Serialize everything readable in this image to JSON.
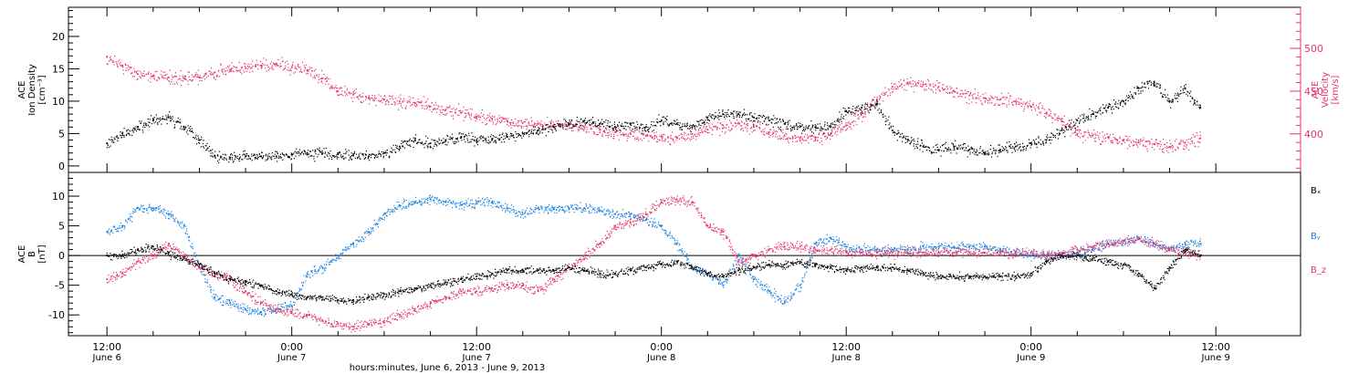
{
  "chart_data": [
    {
      "type": "scatter",
      "panel": "top",
      "ylabel_left": [
        "ACE",
        "Ion Density",
        "[cm⁻³]"
      ],
      "ylabel_right": [
        "ACE",
        "Velocity",
        "[km/s]"
      ],
      "ylim_left": [
        -1,
        24.5
      ],
      "ylim_right": [
        355,
        548
      ],
      "left_ticks": [
        0,
        5,
        10,
        15,
        20
      ],
      "right_ticks": [
        400,
        450,
        500
      ],
      "series": [
        {
          "axis": "left",
          "color": "#000000",
          "x": [
            0,
            1,
            2,
            3,
            4,
            5,
            6,
            7,
            8,
            9,
            10,
            11,
            12,
            13,
            14,
            15,
            16,
            17,
            18,
            19,
            20,
            21,
            22,
            23,
            24,
            25,
            26,
            27,
            28,
            29,
            30,
            31,
            32,
            33,
            34,
            35,
            36,
            37,
            38,
            39,
            40,
            41,
            42,
            43,
            44,
            45,
            46,
            47,
            48,
            49,
            50,
            51,
            52,
            53,
            54,
            55,
            56,
            57,
            58,
            59,
            60,
            61,
            62,
            63,
            64,
            65,
            66,
            67,
            68,
            69,
            70,
            71
          ],
          "y": [
            3.5,
            5,
            6,
            7,
            7.5,
            6,
            4,
            1.5,
            1.3,
            1.5,
            1.5,
            1.5,
            1.8,
            2,
            2,
            1.8,
            1.6,
            1.5,
            2,
            3,
            4,
            3.5,
            4,
            4.5,
            4,
            4,
            4.5,
            5,
            5.5,
            6,
            6.5,
            7,
            6.5,
            6,
            6.5,
            6,
            7,
            6.5,
            6,
            7.5,
            8,
            8,
            7.5,
            7,
            6.5,
            6,
            6,
            6,
            8.5,
            9,
            9.5,
            5.5,
            4,
            3,
            2.5,
            3,
            2.5,
            2,
            2.5,
            3,
            3.5,
            4,
            5.5,
            7,
            8,
            9,
            10,
            12,
            13,
            10,
            12,
            9
          ]
        },
        {
          "axis": "right",
          "color": "#e83268",
          "x": [
            0,
            1,
            2,
            3,
            4,
            5,
            6,
            7,
            8,
            9,
            10,
            11,
            12,
            13,
            14,
            15,
            16,
            17,
            18,
            19,
            20,
            21,
            22,
            23,
            24,
            25,
            26,
            27,
            28,
            29,
            30,
            31,
            32,
            33,
            34,
            35,
            36,
            37,
            38,
            39,
            40,
            41,
            42,
            43,
            44,
            45,
            46,
            47,
            48,
            49,
            50,
            51,
            52,
            53,
            54,
            55,
            56,
            57,
            58,
            59,
            60,
            61,
            62,
            63,
            64,
            65,
            66,
            67,
            68,
            69,
            70,
            71
          ],
          "y": [
            490,
            480,
            470,
            468,
            466,
            465,
            466,
            472,
            475,
            477,
            480,
            482,
            478,
            474,
            465,
            450,
            446,
            442,
            440,
            438,
            436,
            432,
            428,
            425,
            420,
            418,
            415,
            413,
            412,
            411,
            410,
            408,
            405,
            402,
            400,
            398,
            397,
            396,
            400,
            405,
            410,
            412,
            408,
            402,
            398,
            395,
            396,
            400,
            410,
            425,
            440,
            455,
            460,
            458,
            455,
            450,
            445,
            442,
            440,
            438,
            432,
            425,
            415,
            400,
            398,
            396,
            392,
            390,
            388,
            385,
            390,
            395
          ]
        }
      ]
    },
    {
      "type": "scatter",
      "panel": "bottom",
      "ylabel_left": [
        "ACE",
        "B",
        "[nT]"
      ],
      "ylim": [
        -13.5,
        14
      ],
      "left_ticks": [
        -10,
        -5,
        0,
        5,
        10
      ],
      "legend": [
        "Bₓ",
        "Bᵧ",
        "B_z"
      ],
      "zero_line": true,
      "series": [
        {
          "name": "Bₓ",
          "color": "#000000",
          "x": [
            0,
            1,
            2,
            3,
            4,
            5,
            6,
            7,
            8,
            9,
            10,
            11,
            12,
            13,
            14,
            15,
            16,
            17,
            18,
            19,
            20,
            21,
            22,
            23,
            24,
            25,
            26,
            27,
            28,
            29,
            30,
            31,
            32,
            33,
            34,
            35,
            36,
            37,
            38,
            39,
            40,
            41,
            42,
            43,
            44,
            45,
            46,
            47,
            48,
            49,
            50,
            51,
            52,
            53,
            54,
            55,
            56,
            57,
            58,
            59,
            60,
            61,
            62,
            63,
            64,
            65,
            66,
            67,
            68,
            69,
            70,
            71
          ],
          "y": [
            0,
            0,
            1,
            1.5,
            0.5,
            -0.5,
            -1.5,
            -3,
            -4,
            -4.5,
            -5,
            -6,
            -6.5,
            -7,
            -7,
            -7.5,
            -7.5,
            -7,
            -6.5,
            -6,
            -5.5,
            -5,
            -4.5,
            -4,
            -3.5,
            -3,
            -2.5,
            -2.5,
            -2.5,
            -2.5,
            -2,
            -2.5,
            -3,
            -3,
            -2.5,
            -2,
            -1.5,
            -1,
            -2,
            -3,
            -3.5,
            -2.5,
            -2,
            -1.5,
            -1.5,
            -1,
            -1.5,
            -2,
            -2.5,
            -2,
            -2,
            -2,
            -2.5,
            -3,
            -3.5,
            -3.5,
            -3.5,
            -3.5,
            -3.5,
            -3.5,
            -3,
            -1,
            0,
            0,
            -0.5,
            -1,
            -1.5,
            -3,
            -5.5,
            -2,
            1,
            0
          ]
        },
        {
          "name": "Bᵧ",
          "color": "#1a82e0",
          "x": [
            0,
            1,
            2,
            3,
            4,
            5,
            6,
            7,
            8,
            9,
            10,
            11,
            12,
            13,
            14,
            15,
            16,
            17,
            18,
            19,
            20,
            21,
            22,
            23,
            24,
            25,
            26,
            27,
            28,
            29,
            30,
            31,
            32,
            33,
            34,
            35,
            36,
            37,
            38,
            39,
            40,
            41,
            42,
            43,
            44,
            45,
            46,
            47,
            48,
            49,
            50,
            51,
            52,
            53,
            54,
            55,
            56,
            57,
            58,
            59,
            60,
            61,
            62,
            63,
            64,
            65,
            66,
            67,
            68,
            69,
            70,
            71
          ],
          "y": [
            4,
            5,
            8,
            8,
            7,
            5,
            -2,
            -7,
            -8,
            -9,
            -9.5,
            -9,
            -8.5,
            -3,
            -2,
            0,
            2,
            4,
            7,
            8.5,
            9,
            9.5,
            9,
            8.5,
            9,
            9,
            8,
            7,
            8,
            8,
            8,
            8,
            7.5,
            7,
            7,
            6,
            5,
            2,
            -2,
            -3,
            -5,
            0,
            -4,
            -6,
            -8,
            -5,
            2,
            3,
            1.5,
            1,
            1,
            1,
            1,
            1.5,
            1.5,
            1.5,
            1.5,
            1.5,
            1,
            0.5,
            0,
            0,
            0,
            0.5,
            1,
            2,
            2.5,
            3,
            2,
            1,
            2,
            2
          ]
        },
        {
          "name": "B_z",
          "color": "#e83268",
          "x": [
            0,
            1,
            2,
            3,
            4,
            5,
            6,
            7,
            8,
            9,
            10,
            11,
            12,
            13,
            14,
            15,
            16,
            17,
            18,
            19,
            20,
            21,
            22,
            23,
            24,
            25,
            26,
            27,
            28,
            29,
            30,
            31,
            32,
            33,
            34,
            35,
            36,
            37,
            38,
            39,
            40,
            41,
            42,
            43,
            44,
            45,
            46,
            47,
            48,
            49,
            50,
            51,
            52,
            53,
            54,
            55,
            56,
            57,
            58,
            59,
            60,
            61,
            62,
            63,
            64,
            65,
            66,
            67,
            68,
            69,
            70,
            71
          ],
          "y": [
            -4,
            -3,
            -1,
            0,
            2,
            0,
            -2,
            -3,
            -4,
            -6,
            -8,
            -9,
            -9.5,
            -10,
            -11,
            -11.5,
            -12,
            -11.5,
            -11,
            -10,
            -9,
            -8,
            -7,
            -6,
            -6,
            -5.5,
            -5,
            -5,
            -6,
            -4,
            -2,
            0,
            2,
            5,
            5.5,
            7,
            9,
            9.5,
            9,
            5,
            4,
            -1,
            0,
            1,
            1.5,
            1.5,
            1,
            1,
            0.5,
            0.5,
            0.5,
            0.5,
            0.5,
            0.5,
            0.5,
            0.5,
            0.5,
            0.5,
            0.5,
            0.5,
            0.5,
            0,
            0.5,
            1,
            1.5,
            2,
            2.5,
            3,
            2,
            1,
            0.5,
            0
          ]
        }
      ]
    }
  ],
  "x_axis": {
    "xlim": [
      -2.5,
      77.5
    ],
    "hour_ticks": [
      0,
      12,
      24,
      36,
      48,
      60,
      72
    ],
    "labels": [
      {
        "time": "12:00",
        "date": "June 6"
      },
      {
        "time": "0:00",
        "date": "June 7"
      },
      {
        "time": "12:00",
        "date": "June 7"
      },
      {
        "time": "0:00",
        "date": "June 8"
      },
      {
        "time": "12:00",
        "date": "June 8"
      },
      {
        "time": "0:00",
        "date": "June 9"
      },
      {
        "time": "12:00",
        "date": "June 9"
      }
    ],
    "title": "hours:minutes, June  6, 2013 - June  9, 2013"
  }
}
